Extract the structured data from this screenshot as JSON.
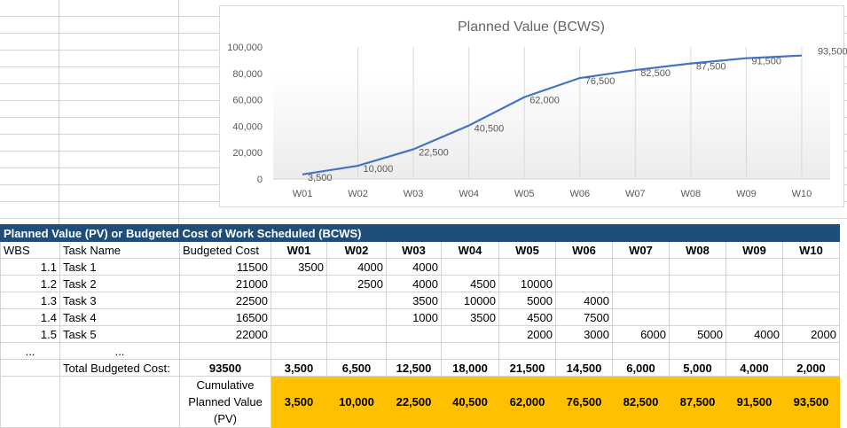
{
  "chart_data": {
    "type": "line",
    "title": "Planned Value (BCWS)",
    "categories": [
      "W01",
      "W02",
      "W03",
      "W04",
      "W05",
      "W06",
      "W07",
      "W08",
      "W09",
      "W10"
    ],
    "values": [
      3500,
      10000,
      22500,
      40500,
      62000,
      76500,
      82500,
      87500,
      91500,
      93500
    ],
    "data_labels": [
      "3,500",
      "10,000",
      "22,500",
      "40,500",
      "62,000",
      "76,500",
      "82,500",
      "87,500",
      "91,500",
      "93,500"
    ],
    "y_ticks": [
      "0",
      "20,000",
      "40,000",
      "60,000",
      "80,000",
      "100,000"
    ],
    "ylim": [
      0,
      100000
    ],
    "grid": "vertical",
    "legend": "none",
    "line_color": "#4472c4"
  },
  "table": {
    "title": "Planned Value (PV) or Budgeted Cost of Work Scheduled (BCWS)",
    "headers": [
      "WBS",
      "Task Name",
      "Budgeted Cost",
      "W01",
      "W02",
      "W03",
      "W04",
      "W05",
      "W06",
      "W07",
      "W08",
      "W09",
      "W10"
    ],
    "rows": [
      [
        "1.1",
        "Task 1",
        "11500",
        "3500",
        "4000",
        "4000",
        "",
        "",
        "",
        "",
        "",
        "",
        ""
      ],
      [
        "1.2",
        "Task 2",
        "21000",
        "",
        "2500",
        "4000",
        "4500",
        "10000",
        "",
        "",
        "",
        "",
        ""
      ],
      [
        "1.3",
        "Task 3",
        "22500",
        "",
        "",
        "3500",
        "10000",
        "5000",
        "4000",
        "",
        "",
        "",
        ""
      ],
      [
        "1.4",
        "Task 4",
        "16500",
        "",
        "",
        "1000",
        "3500",
        "4500",
        "7500",
        "",
        "",
        "",
        ""
      ],
      [
        "1.5",
        "Task 5",
        "22000",
        "",
        "",
        "",
        "",
        "2000",
        "3000",
        "6000",
        "5000",
        "4000",
        "2000"
      ],
      [
        "...",
        "...",
        "",
        "",
        "",
        "",
        "",
        "",
        "",
        "",
        "",
        "",
        ""
      ]
    ],
    "total_label": "Total Budgeted Cost:",
    "total_value": "93500",
    "weekly_totals": [
      "3,500",
      "6,500",
      "12,500",
      "18,000",
      "21,500",
      "14,500",
      "6,000",
      "5,000",
      "4,000",
      "2,000"
    ],
    "cumulative_label": "Cumulative Planned Value (PV)",
    "cumulative": [
      "3,500",
      "10,000",
      "22,500",
      "40,500",
      "62,000",
      "76,500",
      "82,500",
      "87,500",
      "91,500",
      "93,500"
    ],
    "colors": {
      "title_bg": "#1f4e79",
      "highlight": "#ffc000"
    }
  }
}
